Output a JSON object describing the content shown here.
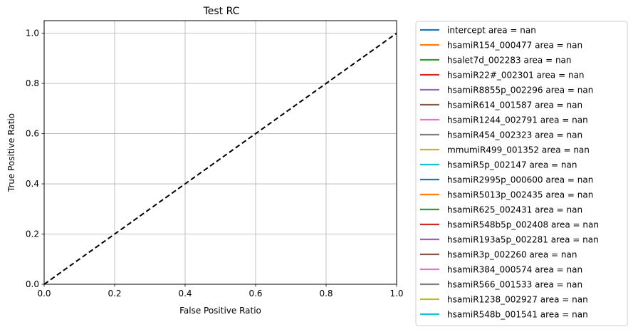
{
  "chart_data": {
    "type": "line",
    "title": "Test RC",
    "xlabel": "False Positive Ratio",
    "ylabel": "True Positive Ratio",
    "xlim": [
      0.0,
      1.0
    ],
    "ylim": [
      0.0,
      1.05
    ],
    "xticks": [
      "0.0",
      "0.2",
      "0.4",
      "0.6",
      "0.8",
      "1.0"
    ],
    "yticks": [
      "0.0",
      "0.2",
      "0.4",
      "0.6",
      "0.8",
      "1.0"
    ],
    "grid": true,
    "legend_position": "outside right",
    "reference_line": {
      "x": [
        0,
        1
      ],
      "y": [
        0,
        1
      ],
      "style": "dashed",
      "color": "#000000"
    },
    "series": [
      {
        "name": "intercept area = nan",
        "color": "#1f77b4"
      },
      {
        "name": "hsamiR154_000477 area = nan",
        "color": "#ff7f0e"
      },
      {
        "name": "hsalet7d_002283 area = nan",
        "color": "#2ca02c"
      },
      {
        "name": "hsamiR22#_002301 area = nan",
        "color": "#d62728"
      },
      {
        "name": "hsamiR8855p_002296 area = nan",
        "color": "#9467bd"
      },
      {
        "name": "hsamiR614_001587 area = nan",
        "color": "#8c564b"
      },
      {
        "name": "hsamiR1244_002791 area = nan",
        "color": "#e377c2"
      },
      {
        "name": "hsamiR454_002323 area = nan",
        "color": "#7f7f7f"
      },
      {
        "name": "mmumiR499_001352 area = nan",
        "color": "#bcbd22"
      },
      {
        "name": "hsamiR5p_002147 area = nan",
        "color": "#17becf"
      },
      {
        "name": "hsamiR2995p_000600 area = nan",
        "color": "#1f77b4"
      },
      {
        "name": "hsamiR5013p_002435 area = nan",
        "color": "#ff7f0e"
      },
      {
        "name": "hsamiR625_002431 area = nan",
        "color": "#2ca02c"
      },
      {
        "name": "hsamiR548b5p_002408 area = nan",
        "color": "#d62728"
      },
      {
        "name": "hsamiR193a5p_002281 area = nan",
        "color": "#9467bd"
      },
      {
        "name": "hsamiR3p_002260 area = nan",
        "color": "#8c564b"
      },
      {
        "name": "hsamiR384_000574 area = nan",
        "color": "#e377c2"
      },
      {
        "name": "hsamiR566_001533 area = nan",
        "color": "#7f7f7f"
      },
      {
        "name": "hsamiR1238_002927 area = nan",
        "color": "#bcbd22"
      },
      {
        "name": "hsamiR548b_001541 area = nan",
        "color": "#17becf"
      }
    ]
  }
}
